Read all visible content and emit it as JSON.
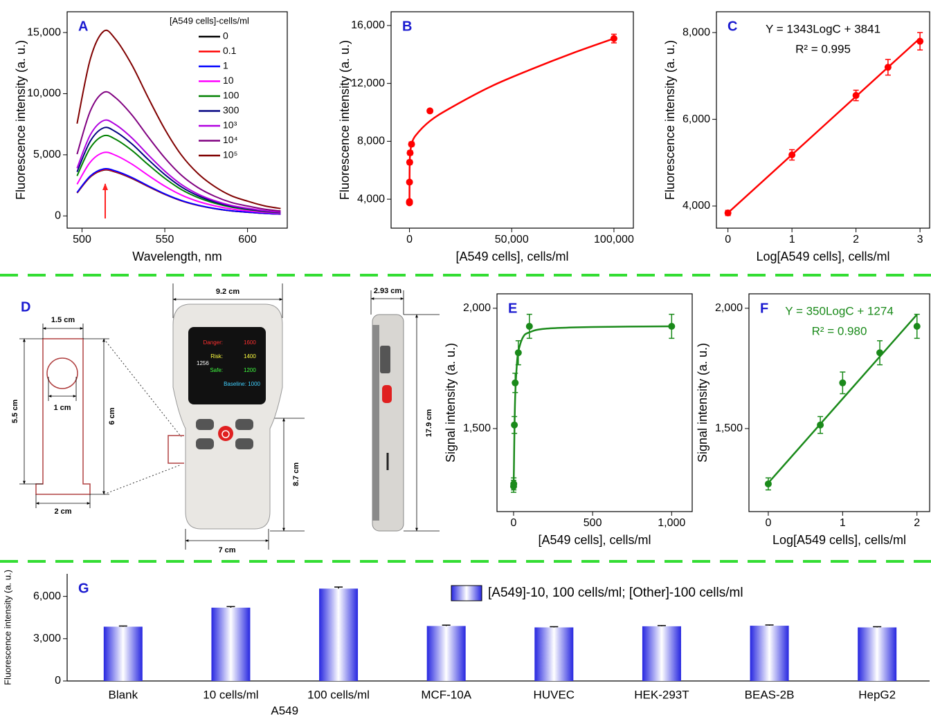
{
  "chart_data": [
    {
      "type": "line",
      "panel_label": "A",
      "x": [
        497,
        505,
        513,
        520,
        530,
        540,
        550,
        560,
        570,
        580,
        590,
        600,
        610,
        620
      ],
      "xlim": [
        491,
        624
      ],
      "xticks": [
        500,
        550,
        600
      ],
      "ylim": [
        -1000,
        16700
      ],
      "yticks": [
        0,
        {
          "value": 5000,
          "label": "5,000"
        },
        {
          "value": 10000,
          "label": "10,000"
        },
        {
          "value": 15000,
          "label": "15,000"
        }
      ],
      "x_label": "Wavelength, nm",
      "y_label": "Fluorescence intensity (a. u.)",
      "legend_title": "[A549 cells]-cells/ml",
      "series": [
        {
          "name": "0",
          "color": "#000000",
          "values": [
            1875,
            3188,
            3750,
            3600,
            3075,
            2400,
            1763,
            1238,
            863,
            600,
            413,
            300,
            206,
            150
          ]
        },
        {
          "name": "0.1",
          "color": "#ff0000",
          "values": [
            1890,
            3213,
            3780,
            3629,
            3100,
            2419,
            1777,
            1247,
            869,
            605,
            416,
            302,
            208,
            151
          ]
        },
        {
          "name": "1",
          "color": "#0000ff",
          "values": [
            1920,
            3264,
            3840,
            3686,
            3149,
            2458,
            1805,
            1267,
            883,
            614,
            422,
            307,
            211,
            154
          ]
        },
        {
          "name": "10",
          "color": "#ff00ff",
          "values": [
            2590,
            4403,
            5180,
            4973,
            4248,
            3315,
            2435,
            1709,
            1191,
            829,
            570,
            414,
            285,
            207
          ]
        },
        {
          "name": "100",
          "color": "#008000",
          "values": [
            3275,
            5568,
            6550,
            6288,
            5371,
            4192,
            3079,
            2162,
            1507,
            1048,
            721,
            524,
            360,
            262
          ]
        },
        {
          "name": "300",
          "color": "#000080",
          "values": [
            3600,
            6120,
            7200,
            6912,
            5904,
            4608,
            3384,
            2376,
            1656,
            1152,
            792,
            576,
            396,
            288
          ]
        },
        {
          "name": "10³",
          "color": "#b000e0",
          "values": [
            3900,
            6630,
            7800,
            7488,
            6396,
            4992,
            3666,
            2574,
            1794,
            1248,
            858,
            624,
            429,
            312
          ]
        },
        {
          "name": "10⁴",
          "color": "#800080",
          "values": [
            5050,
            8585,
            10100,
            9696,
            8282,
            6464,
            4747,
            3333,
            2323,
            1616,
            1111,
            808,
            556,
            404
          ]
        },
        {
          "name": "10⁵",
          "color": "#800000",
          "values": [
            7550,
            12835,
            15100,
            14496,
            12382,
            9664,
            7097,
            4983,
            3473,
            2416,
            1661,
            1208,
            831,
            604
          ]
        }
      ]
    },
    {
      "type": "scatter",
      "panel_label": "B",
      "x": [
        0,
        0.1,
        1,
        10,
        100,
        300,
        1000,
        10000,
        100000
      ],
      "values": [
        3750,
        3780,
        3840,
        5180,
        6550,
        7200,
        7800,
        10100,
        15100
      ],
      "errors": [
        80,
        80,
        100,
        120,
        150,
        150,
        150,
        120,
        300
      ],
      "color": "#ff0000",
      "fit": {
        "x": [
          0,
          100,
          500,
          1000,
          3000,
          10000,
          20000,
          40000,
          60000,
          80000,
          100000
        ],
        "values": [
          3750,
          6500,
          7300,
          7800,
          8400,
          9400,
          10300,
          11800,
          13000,
          14100,
          15100
        ]
      },
      "xlim": [
        -9000,
        109500
      ],
      "xticks": [
        0,
        {
          "value": 50000,
          "label": "50,000"
        },
        {
          "value": 100000,
          "label": "100,000"
        }
      ],
      "ylim": [
        2000,
        16950
      ],
      "yticks": [
        {
          "value": 4000,
          "label": "4,000"
        },
        {
          "value": 8000,
          "label": "8,000"
        },
        {
          "value": 12000,
          "label": "12,000"
        },
        {
          "value": 16000,
          "label": "16,000"
        }
      ],
      "x_label": "[A549 cells], cells/ml",
      "y_label": "Fluorescence intensity (a. u.)"
    },
    {
      "type": "scatter",
      "panel_label": "C",
      "x": [
        0,
        1,
        2,
        2.5,
        3
      ],
      "values": [
        3840,
        5180,
        6550,
        7200,
        7800
      ],
      "errors": [
        60,
        120,
        120,
        180,
        200
      ],
      "color": "#ff0000",
      "fit": {
        "x": [
          0,
          3
        ],
        "values": [
          3841,
          7870
        ]
      },
      "xlim": [
        -0.18,
        3.15
      ],
      "xticks": [
        0,
        1,
        2,
        3
      ],
      "ylim": [
        3490,
        8480
      ],
      "yticks": [
        {
          "value": 4000,
          "label": "4,000"
        },
        {
          "value": 6000,
          "label": "6,000"
        },
        {
          "value": 8000,
          "label": "8,000"
        }
      ],
      "x_label": "Log[A549 cells], cells/ml",
      "y_label": "Fluorescence intensity (a. u.)",
      "annotations": [
        "Y = 1343LogC + 3841",
        "R² = 0.995"
      ],
      "annotation_color": "#000000"
    },
    {
      "type": "scatter",
      "panel_label": "E",
      "x": [
        0,
        1,
        5,
        10,
        30,
        100,
        1000
      ],
      "values": [
        1260,
        1270,
        1515,
        1690,
        1815,
        1925,
        1925
      ],
      "errors": [
        25,
        25,
        35,
        40,
        50,
        50,
        50
      ],
      "color": "#1a8a1a",
      "fit": {
        "x": [
          0,
          2,
          5,
          10,
          20,
          30,
          60,
          100,
          200,
          500,
          1000
        ],
        "values": [
          1260,
          1330,
          1470,
          1630,
          1760,
          1820,
          1880,
          1900,
          1915,
          1922,
          1925
        ]
      },
      "xlim": [
        -105,
        1130
      ],
      "xticks": [
        0,
        500,
        {
          "value": 1000,
          "label": "1,000"
        }
      ],
      "ylim": [
        1155,
        2060
      ],
      "yticks": [
        {
          "value": 1500,
          "label": "1,500"
        },
        {
          "value": 2000,
          "label": "2,000"
        }
      ],
      "x_label": "[A549 cells], cells/ml",
      "y_label": "Signal intensity (a. u.)"
    },
    {
      "type": "scatter",
      "panel_label": "F",
      "x": [
        0,
        0.7,
        1,
        1.5,
        2
      ],
      "values": [
        1270,
        1515,
        1690,
        1815,
        1925
      ],
      "errors": [
        25,
        35,
        45,
        50,
        50
      ],
      "color": "#1a8a1a",
      "fit": {
        "x": [
          0,
          2
        ],
        "values": [
          1274,
          1974
        ]
      },
      "xlim": [
        -0.26,
        2.17
      ],
      "xticks": [
        0,
        1,
        2
      ],
      "ylim": [
        1155,
        2060
      ],
      "yticks": [
        {
          "value": 1500,
          "label": "1,500"
        },
        {
          "value": 2000,
          "label": "2,000"
        }
      ],
      "x_label": "Log[A549 cells], cells/ml",
      "y_label": "Signal intensity (a. u.)",
      "annotations": [
        "Y = 350LogC + 1274",
        "R² = 0.980"
      ],
      "annotation_color": "#1a8a1a"
    },
    {
      "type": "bar",
      "panel_label": "G",
      "categories": [
        "Blank",
        "10 cells/ml",
        "100 cells/ml",
        "MCF-10A",
        "HUVEC",
        "HEK-293T",
        "BEAS-2B",
        "HepG2"
      ],
      "values": [
        3850,
        5200,
        6550,
        3900,
        3800,
        3880,
        3920,
        3800
      ],
      "errors": [
        50,
        80,
        110,
        60,
        50,
        50,
        50,
        50
      ],
      "color": "#2626e0",
      "ylim": [
        0,
        7600
      ],
      "yticks": [
        0,
        {
          "value": 3000,
          "label": "3,000"
        },
        {
          "value": 6000,
          "label": "6,000"
        }
      ],
      "y_label": "Fluorescence intensity (a. u.)",
      "legend_label": "[A549]-10, 100 cells/ml; [Other]-100 cells/ml",
      "group_label": "A549"
    }
  ],
  "diagram": {
    "panel_label": "D",
    "cuvette": {
      "top_width": "1.5 cm",
      "hole": "1 cm",
      "height_left": "5.5 cm",
      "height_right": "6 cm",
      "bottom_width": "2 cm"
    },
    "device_front": {
      "width": "9.2 cm",
      "lower_height": "8.7 cm",
      "bottom_width": "7 cm",
      "screen": {
        "danger_label": "Danger:",
        "danger_value": "1600",
        "risk_label": "Risk:",
        "risk_value": "1400",
        "reading": "1256",
        "safe_label": "Safe:",
        "safe_value": "1200",
        "baseline": "Baseline: 1000"
      }
    },
    "device_side": {
      "depth": "2.93 cm",
      "height": "17.9 cm"
    }
  }
}
